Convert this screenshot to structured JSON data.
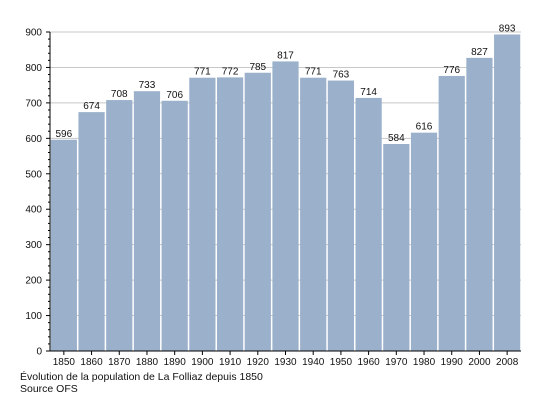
{
  "chart_data": {
    "type": "bar",
    "categories": [
      "1850",
      "1860",
      "1870",
      "1880",
      "1890",
      "1900",
      "1910",
      "1920",
      "1930",
      "1940",
      "1950",
      "1960",
      "1970",
      "1980",
      "1990",
      "2000",
      "2008"
    ],
    "values": [
      596,
      674,
      708,
      733,
      706,
      771,
      772,
      785,
      817,
      771,
      763,
      714,
      584,
      616,
      776,
      827,
      893
    ],
    "ylim": [
      0,
      900
    ],
    "yticks": [
      0,
      100,
      200,
      300,
      400,
      500,
      600,
      700,
      800,
      900
    ],
    "grid": true,
    "bar_color": "#9bb1cb",
    "title": "",
    "xlabel": "",
    "ylabel": ""
  },
  "caption": {
    "line1": "Évolution de la population de La Folliaz depuis 1850",
    "line2": "Source OFS"
  }
}
